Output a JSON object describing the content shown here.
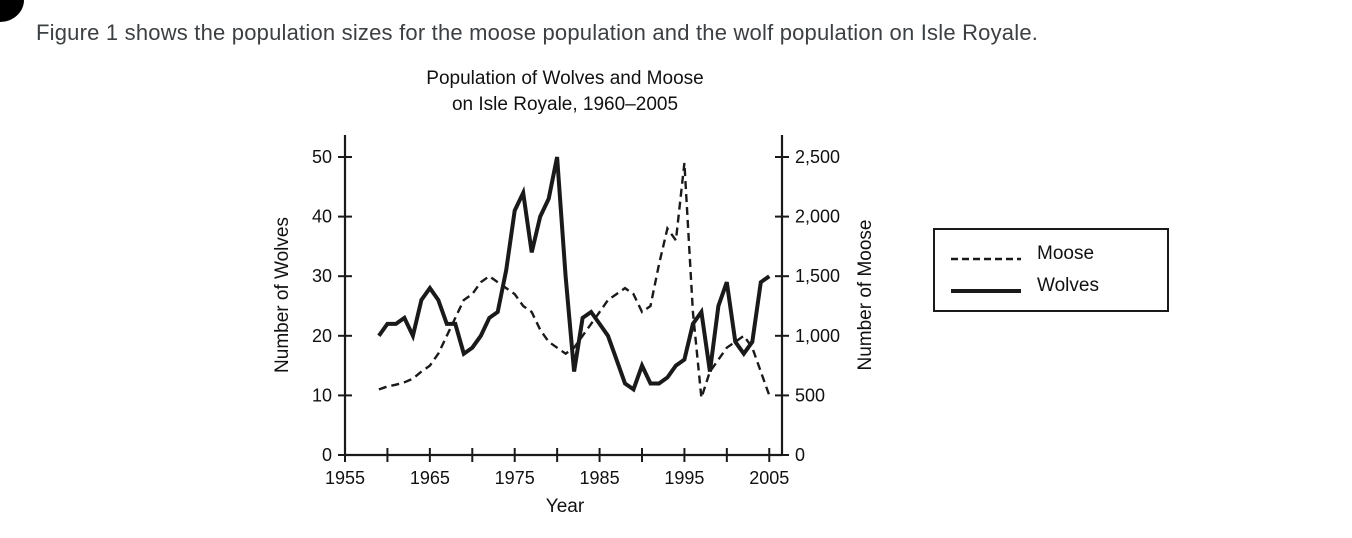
{
  "page": {
    "caption": "Figure 1 shows the population sizes for the moose population and the wolf population on Isle Royale."
  },
  "colors": {
    "line": "#1a1a1a",
    "text": "#111111",
    "caption_text": "#3c4043",
    "background": "#ffffff"
  },
  "chart_data": {
    "type": "line",
    "title": "Population of Wolves and Moose on Isle Royale, 1960–2005",
    "title_lines": [
      "Population of Wolves and Moose",
      "on Isle Royale, 1960–2005"
    ],
    "xlabel": "Year",
    "ylabel_left": "Number of Wolves",
    "ylabel_right": "Number of Moose",
    "x_range": [
      1955,
      2006.5
    ],
    "y_left_range": [
      0,
      50
    ],
    "y_right_range": [
      0,
      2500
    ],
    "x_major_ticks": [
      1955,
      1965,
      1975,
      1985,
      1995,
      2005
    ],
    "x_minor_ticks": [
      1960,
      1970,
      1980,
      1990,
      2000
    ],
    "y_left_ticks": [
      "0",
      "10",
      "20",
      "30",
      "40",
      "50"
    ],
    "y_right_ticks": [
      "0",
      "500",
      "1,000",
      "1,500",
      "2,000",
      "2,500"
    ],
    "grid": false,
    "legend_position": "right-outside",
    "legend": [
      {
        "label": "Moose",
        "style": "dashed"
      },
      {
        "label": "Wolves",
        "style": "solid"
      }
    ],
    "series": [
      {
        "name": "Moose",
        "axis": "right",
        "style": "dashed",
        "x": [
          1959,
          1960,
          1961,
          1962,
          1963,
          1964,
          1965,
          1966,
          1967,
          1968,
          1969,
          1970,
          1971,
          1972,
          1973,
          1974,
          1975,
          1976,
          1977,
          1978,
          1979,
          1980,
          1981,
          1982,
          1983,
          1984,
          1985,
          1986,
          1987,
          1988,
          1989,
          1990,
          1991,
          1992,
          1993,
          1994,
          1995,
          1996,
          1997,
          1998,
          1999,
          2000,
          2001,
          2002,
          2003,
          2004,
          2005
        ],
        "values": [
          550,
          575,
          590,
          610,
          640,
          700,
          750,
          850,
          1000,
          1150,
          1300,
          1350,
          1450,
          1500,
          1450,
          1400,
          1350,
          1250,
          1200,
          1050,
          950,
          900,
          850,
          900,
          1000,
          1100,
          1200,
          1300,
          1350,
          1400,
          1350,
          1200,
          1250,
          1600,
          1900,
          1800,
          2450,
          1200,
          480,
          700,
          800,
          900,
          950,
          1000,
          900,
          700,
          500
        ]
      },
      {
        "name": "Wolves",
        "axis": "left",
        "style": "solid",
        "x": [
          1959,
          1960,
          1961,
          1962,
          1963,
          1964,
          1965,
          1966,
          1967,
          1968,
          1969,
          1970,
          1971,
          1972,
          1973,
          1974,
          1975,
          1976,
          1977,
          1978,
          1979,
          1980,
          1981,
          1982,
          1983,
          1984,
          1985,
          1986,
          1987,
          1988,
          1989,
          1990,
          1991,
          1992,
          1993,
          1994,
          1995,
          1996,
          1997,
          1998,
          1999,
          2000,
          2001,
          2002,
          2003,
          2004,
          2005
        ],
        "values": [
          20,
          22,
          22,
          23,
          20,
          26,
          28,
          26,
          22,
          22,
          17,
          18,
          20,
          23,
          24,
          31,
          41,
          44,
          34,
          40,
          43,
          50,
          30,
          14,
          23,
          24,
          22,
          20,
          16,
          12,
          11,
          15,
          12,
          12,
          13,
          15,
          16,
          22,
          24,
          14,
          25,
          29,
          19,
          17,
          19,
          29,
          30
        ]
      }
    ]
  }
}
